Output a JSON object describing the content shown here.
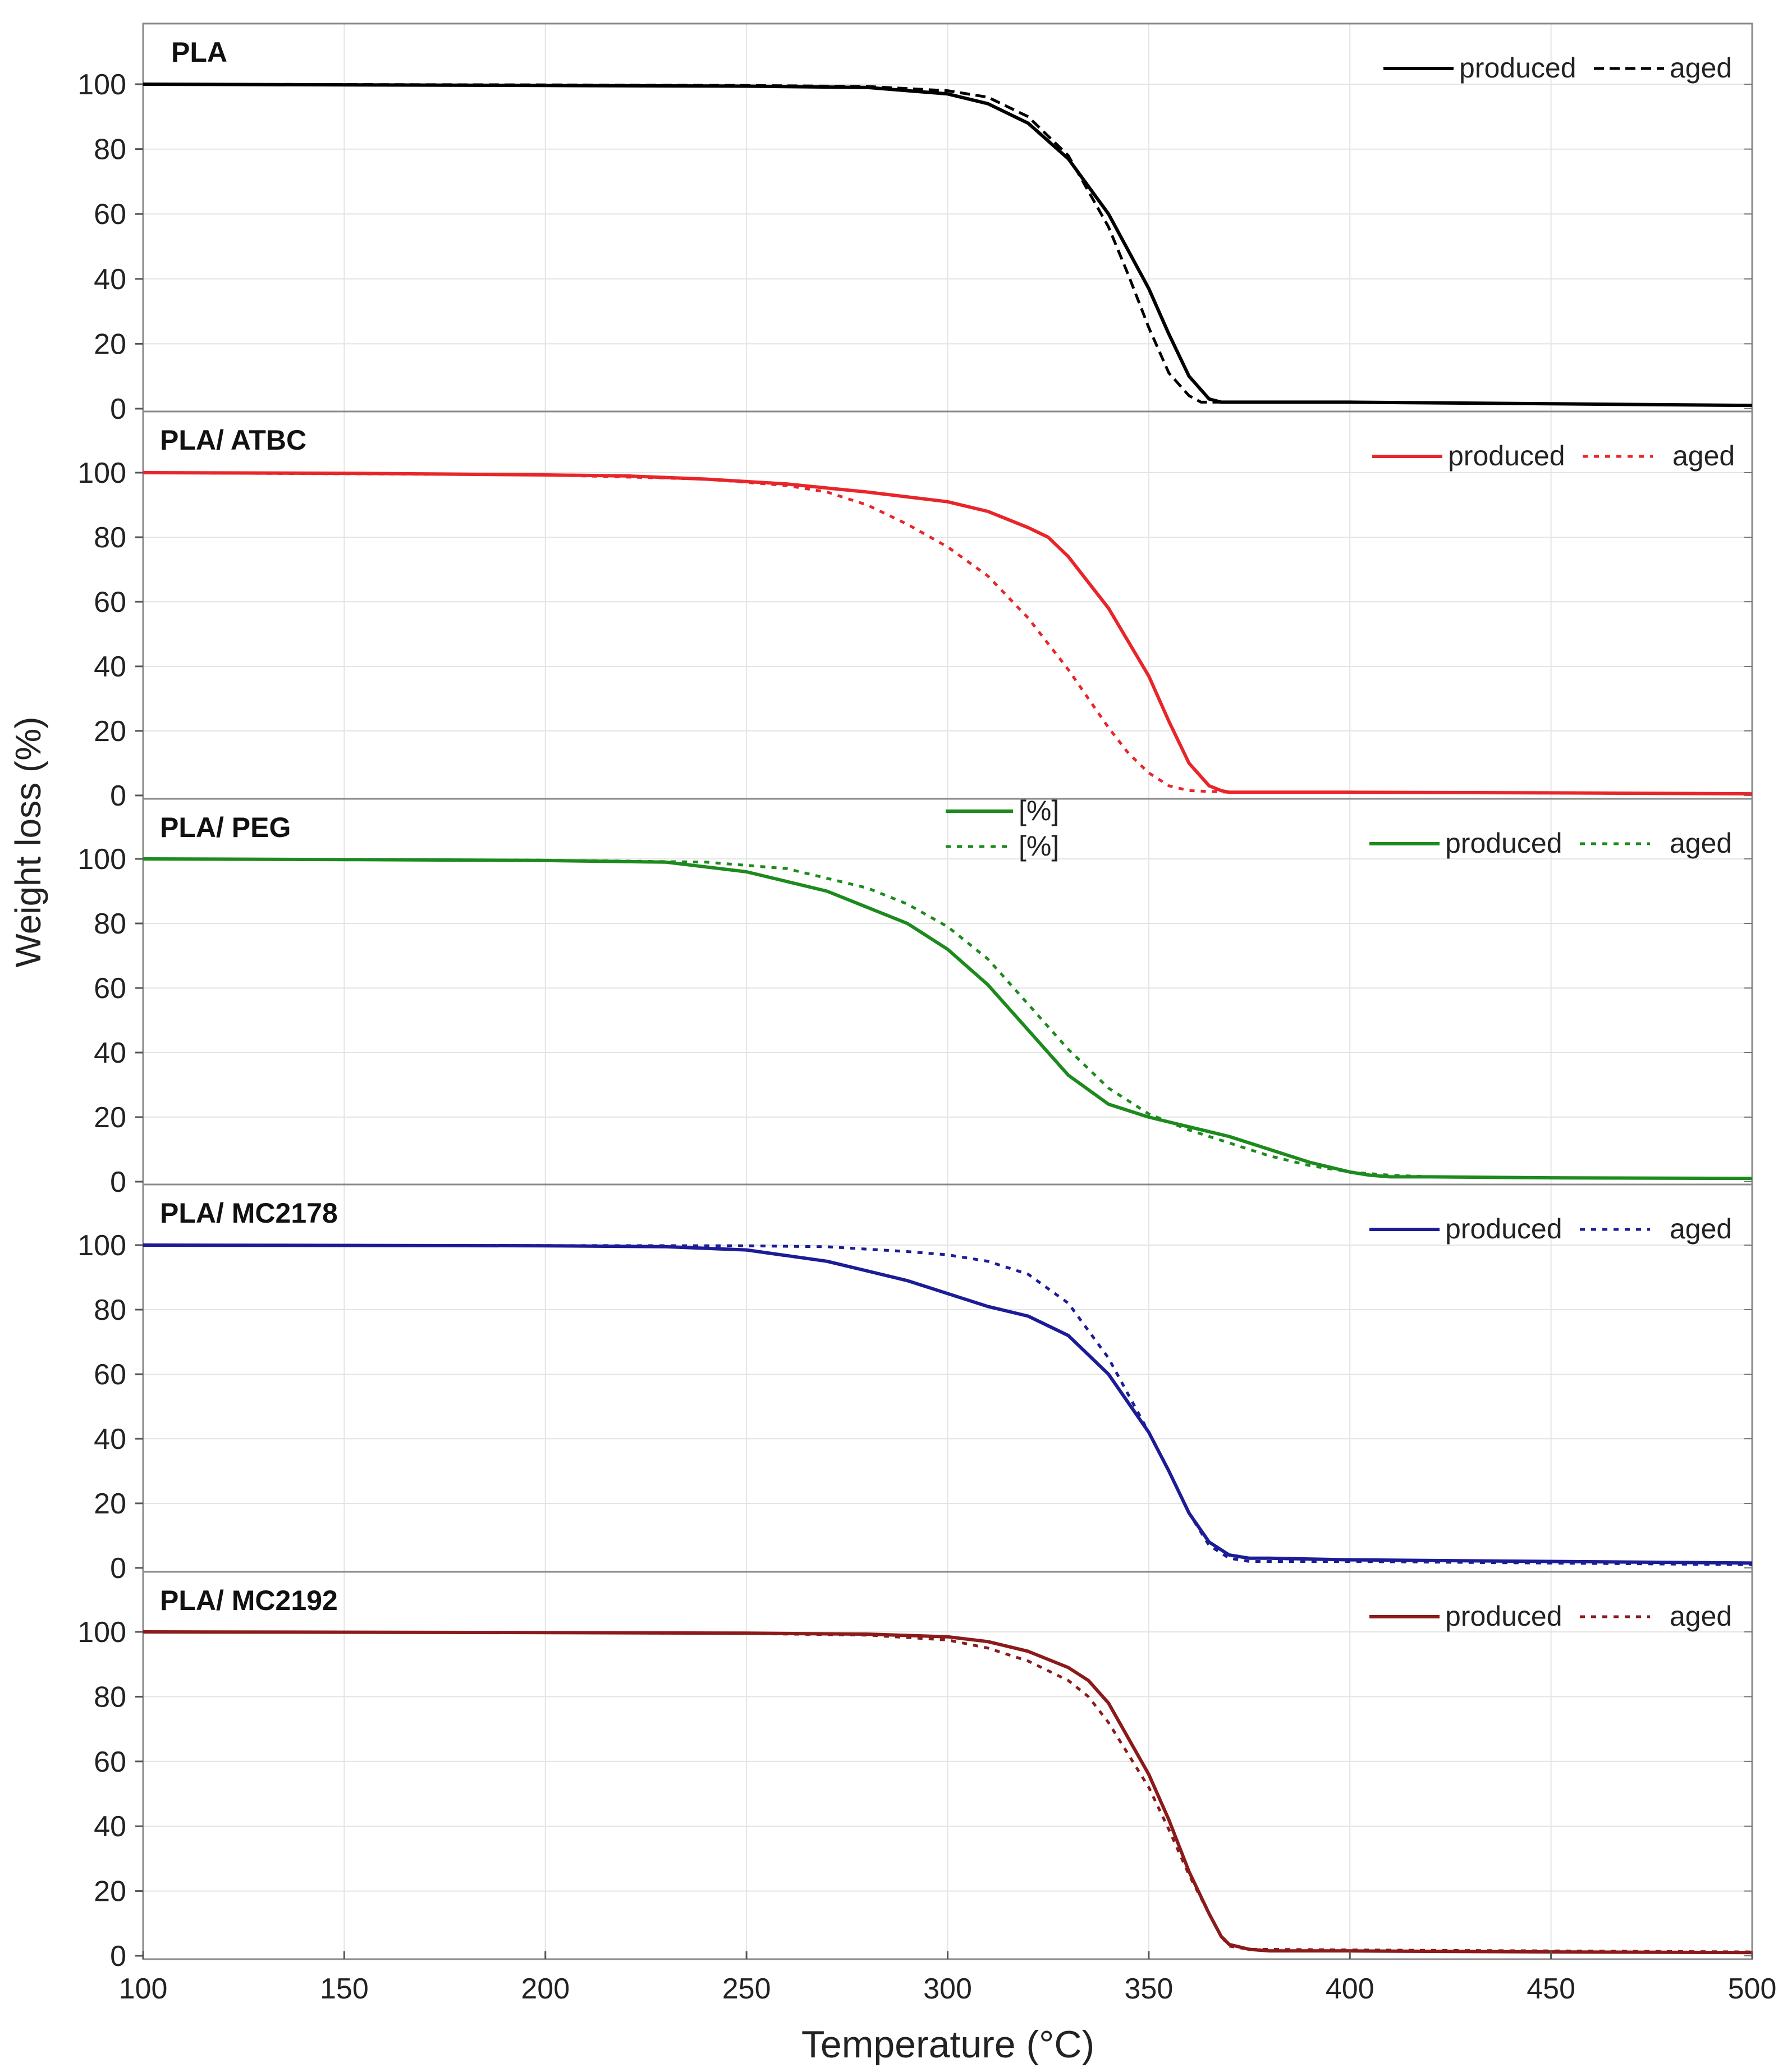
{
  "chart_data": {
    "type": "line",
    "xlabel": "Temperature (°C)",
    "ylabel": "Weight loss (%)",
    "xlim": [
      100,
      500
    ],
    "ylim": [
      0,
      110
    ],
    "xticks": [
      100,
      150,
      200,
      250,
      300,
      350,
      400,
      450,
      500
    ],
    "yticks": [
      0,
      20,
      40,
      60,
      80,
      100
    ],
    "grid": true,
    "legend_placement": "top-right",
    "panels": [
      {
        "title": "PLA",
        "color": "#000000",
        "legend_labels": [
          "produced",
          "aged"
        ],
        "series": [
          {
            "name": "produced",
            "style": "solid",
            "x": [
              100,
              200,
              250,
              280,
              300,
              310,
              320,
              330,
              340,
              350,
              355,
              360,
              365,
              368,
              370,
              400,
              450,
              500
            ],
            "y": [
              100,
              99.6,
              99.4,
              99,
              97,
              94,
              88,
              77,
              60,
              37,
              23,
              10,
              3,
              2,
              2,
              2,
              1.5,
              1
            ]
          },
          {
            "name": "aged",
            "style": "dashed",
            "x": [
              100,
              200,
              250,
              280,
              300,
              310,
              320,
              330,
              340,
              345,
              350,
              355,
              360,
              363,
              365,
              370,
              400,
              450,
              500
            ],
            "y": [
              100,
              99.8,
              99.6,
              99.3,
              98,
              96,
              90,
              78,
              56,
              41,
              25,
              11,
              4,
              2,
              2,
              2,
              2,
              1.5,
              1
            ]
          }
        ]
      },
      {
        "title": "PLA/ ATBC",
        "color": "#e8262a",
        "legend_labels": [
          "produced",
          "aged"
        ],
        "series": [
          {
            "name": "produced",
            "style": "solid",
            "x": [
              100,
              150,
              200,
              220,
              240,
              260,
              280,
              300,
              310,
              320,
              325,
              330,
              340,
              350,
              355,
              360,
              365,
              368,
              370,
              400,
              450,
              500
            ],
            "y": [
              100,
              99.8,
              99.3,
              99,
              98,
              96.5,
              94,
              91,
              88,
              83,
              80,
              74,
              58,
              37,
              23,
              10,
              3,
              1.5,
              1,
              1,
              0.8,
              0.5
            ]
          },
          {
            "name": "aged",
            "style": "dotted",
            "x": [
              100,
              200,
              240,
              260,
              270,
              280,
              290,
              300,
              310,
              320,
              330,
              340,
              345,
              350,
              355,
              360,
              370,
              400,
              500
            ],
            "y": [
              100,
              99.3,
              98,
              96,
              94,
              90,
              84,
              77,
              68,
              55,
              39,
              21,
              13,
              7,
              3,
              1.5,
              1,
              1,
              0.5
            ]
          }
        ]
      },
      {
        "title": "PLA/ PEG",
        "color": "#1d8a1d",
        "legend_labels": [
          "produced",
          "aged"
        ],
        "extra_legend_labels": [
          "[%]",
          "[%]"
        ],
        "series": [
          {
            "name": "produced",
            "style": "solid",
            "x": [
              100,
              150,
              200,
              230,
              250,
              270,
              290,
              300,
              310,
              320,
              330,
              340,
              350,
              360,
              370,
              380,
              390,
              400,
              405,
              410,
              420,
              450,
              500
            ],
            "y": [
              100,
              99.8,
              99.5,
              99,
              96,
              90,
              80,
              72,
              61,
              47,
              33,
              24,
              20,
              17,
              14,
              10,
              6,
              3,
              2,
              1.5,
              1.5,
              1.2,
              1
            ]
          },
          {
            "name": "aged",
            "style": "dotted",
            "x": [
              100,
              200,
              240,
              260,
              280,
              290,
              300,
              310,
              320,
              330,
              340,
              350,
              360,
              370,
              380,
              390,
              400,
              410,
              420,
              450,
              500
            ],
            "y": [
              100,
              99.6,
              99,
              97,
              91,
              86,
              79,
              69,
              55,
              41,
              29,
              21,
              16,
              12,
              8,
              5,
              3,
              2,
              1.5,
              1.2,
              1
            ]
          }
        ]
      },
      {
        "title": "PLA/ MC2178",
        "color": "#1c1c96",
        "legend_labels": [
          "produced",
          "aged"
        ],
        "series": [
          {
            "name": "produced",
            "style": "solid",
            "x": [
              100,
              200,
              230,
              250,
              270,
              280,
              290,
              300,
              310,
              320,
              330,
              340,
              350,
              355,
              360,
              365,
              370,
              375,
              380,
              400,
              450,
              500
            ],
            "y": [
              100,
              99.8,
              99.5,
              98.5,
              95,
              92,
              89,
              85,
              81,
              78,
              72,
              60,
              42,
              30,
              17,
              8,
              4,
              3,
              3,
              2.5,
              2,
              1.5
            ]
          },
          {
            "name": "aged",
            "style": "dotted",
            "x": [
              100,
              250,
              270,
              290,
              300,
              310,
              320,
              330,
              340,
              350,
              355,
              360,
              365,
              370,
              375,
              380,
              400,
              450,
              500
            ],
            "y": [
              100,
              99.8,
              99.5,
              98,
              97,
              95,
              91,
              82,
              65,
              42,
              30,
              17,
              7,
              3,
              2,
              2,
              2,
              1.5,
              1
            ]
          }
        ]
      },
      {
        "title": "PLA/ MC2192",
        "color": "#8b1a1a",
        "legend_labels": [
          "produced",
          "aged"
        ],
        "series": [
          {
            "name": "produced",
            "style": "solid",
            "x": [
              100,
              200,
              250,
              280,
              300,
              310,
              320,
              330,
              335,
              340,
              350,
              355,
              360,
              365,
              368,
              370,
              375,
              380,
              400,
              450,
              500
            ],
            "y": [
              100,
              99.8,
              99.6,
              99.3,
              98.5,
              97,
              94,
              89,
              85,
              78,
              56,
              42,
              26,
              13,
              6,
              3.5,
              2,
              1.5,
              1.5,
              1.2,
              1
            ]
          },
          {
            "name": "aged",
            "style": "dotted",
            "x": [
              100,
              200,
              250,
              280,
              300,
              310,
              320,
              330,
              335,
              340,
              350,
              355,
              360,
              365,
              368,
              370,
              375,
              380,
              400,
              450,
              500
            ],
            "y": [
              100,
              99.8,
              99.5,
              99,
              97.5,
              95,
              91,
              85,
              80,
              72,
              52,
              39,
              25,
              13,
              6,
              3,
              2,
              2,
              1.8,
              1.5,
              1.2
            ]
          }
        ]
      }
    ]
  }
}
